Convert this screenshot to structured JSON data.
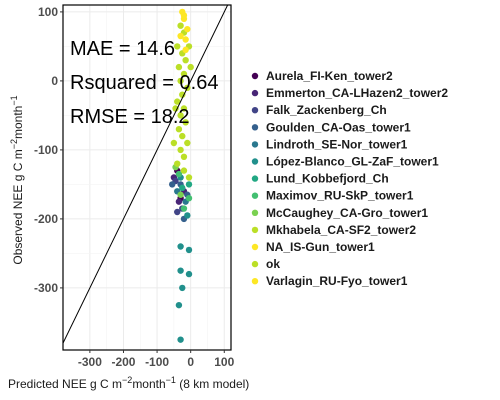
{
  "chart_data": {
    "type": "scatter",
    "xlabel": {
      "prefix": "Predicted NEE g C m",
      "sup1": "−2",
      "mid": "month",
      "sup2": "−1",
      "suffix": " (8 km model)"
    },
    "ylabel": {
      "prefix": "Observed NEE g C m",
      "sup1": "−2",
      "mid": "month",
      "sup2": "−1",
      "suffix": ""
    },
    "xlim": [
      -380,
      120
    ],
    "ylim": [
      -390,
      110
    ],
    "x_ticks": [
      -300,
      -200,
      -100,
      0,
      100
    ],
    "x_tick_labels": [
      "-300",
      "-200",
      "-100",
      "0",
      "100"
    ],
    "y_ticks": [
      100,
      0,
      -100,
      -200,
      -300
    ],
    "y_tick_labels": [
      "100",
      "0",
      "-100",
      "-200",
      "-300"
    ],
    "grid": true,
    "identity_line": true,
    "annotations": [
      "MAE = 14.6",
      "Rsquared = 0.64",
      "RMSE = 18.2"
    ],
    "legend_position": "right",
    "series": [
      {
        "name": "Aurela_FI-Ken_tower2",
        "color": "#440154",
        "points": [
          [
            -40,
            -130
          ],
          [
            -30,
            -170
          ]
        ]
      },
      {
        "name": "Emmerton_CA-LHazen2_tower2",
        "color": "#482576",
        "points": [
          [
            -50,
            -140
          ],
          [
            -20,
            -160
          ],
          [
            -35,
            -175
          ]
        ]
      },
      {
        "name": "Falk_Zackenberg_Ch",
        "color": "#414487",
        "points": [
          [
            -45,
            -145
          ],
          [
            -25,
            -185
          ],
          [
            -40,
            -190
          ]
        ]
      },
      {
        "name": "Goulden_CA-Oas_tower1",
        "color": "#35608D",
        "points": [
          [
            -55,
            -150
          ],
          [
            -30,
            -150
          ],
          [
            -10,
            -165
          ],
          [
            -20,
            -200
          ]
        ]
      },
      {
        "name": "Lindroth_SE-Nor_tower1",
        "color": "#2A788E",
        "points": [
          [
            -40,
            -160
          ],
          [
            -15,
            -175
          ]
        ]
      },
      {
        "name": "López-Blanco_GL-ZaF_tower1",
        "color": "#21908C",
        "points": [
          [
            -30,
            -140
          ],
          [
            -10,
            -195
          ]
        ]
      },
      {
        "name": "Lund_Kobbefjord_Ch",
        "color": "#22A884",
        "points": [
          [
            -25,
            -155
          ],
          [
            -5,
            -150
          ]
        ]
      },
      {
        "name": "Maximov_RU-SkP_tower1",
        "color": "#43BF71",
        "points": [
          [
            -35,
            -135
          ],
          [
            -20,
            -185
          ],
          [
            -5,
            -170
          ]
        ]
      },
      {
        "name": "McCaughey_CA-Gro_tower1",
        "color": "#7AD151",
        "points": [
          [
            -45,
            -125
          ],
          [
            -30,
            -165
          ]
        ]
      },
      {
        "name": "Mkhabela_CA-SF2_tower2",
        "color": "#BBDF27",
        "points": [
          [
            -20,
            -130
          ],
          [
            -5,
            -140
          ]
        ]
      },
      {
        "name": "NA_IS-Gun_tower1",
        "color": "#FDE725",
        "points": [
          [
            -25,
            100
          ],
          [
            -20,
            90
          ],
          [
            -15,
            60
          ]
        ]
      },
      {
        "name": "ok",
        "color": "#BBDF27",
        "points": [
          [
            -30,
            80
          ],
          [
            -20,
            70
          ],
          [
            -40,
            50
          ],
          [
            -25,
            40
          ],
          [
            -15,
            30
          ],
          [
            -35,
            20
          ],
          [
            -20,
            10
          ],
          [
            -30,
            0
          ],
          [
            -10,
            -10
          ],
          [
            -25,
            -20
          ],
          [
            -40,
            -30
          ],
          [
            -20,
            -40
          ],
          [
            -30,
            -50
          ],
          [
            -15,
            -60
          ],
          [
            -35,
            -70
          ],
          [
            -25,
            -80
          ],
          [
            -10,
            -90
          ],
          [
            -30,
            -100
          ],
          [
            -20,
            -110
          ],
          [
            -40,
            -120
          ],
          [
            -5,
            50
          ],
          [
            0,
            20
          ],
          [
            -45,
            -40
          ],
          [
            -50,
            -90
          ]
        ]
      },
      {
        "name": "Varlagin_RU-Fyo_tower1",
        "color": "#FDE725",
        "points": [
          [
            -20,
            95
          ],
          [
            -10,
            75
          ],
          [
            -30,
            65
          ],
          [
            -15,
            45
          ]
        ]
      },
      {
        "name": "",
        "color": "#21908C",
        "points": [
          [
            -30,
            -240
          ],
          [
            -5,
            -245
          ],
          [
            -30,
            -275
          ],
          [
            -5,
            -280
          ],
          [
            -25,
            -300
          ],
          [
            -35,
            -325
          ],
          [
            -30,
            -375
          ]
        ]
      }
    ]
  }
}
